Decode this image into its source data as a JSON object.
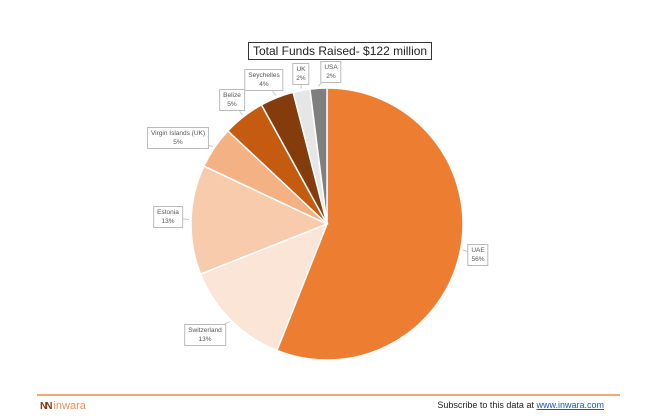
{
  "chart_data": {
    "type": "pie",
    "title": "Total Funds Raised- $122 million",
    "start_angle": "12 o'clock, clockwise",
    "slices": [
      {
        "label": "UAE",
        "value": 56,
        "pct_label": "56%",
        "color": "#ED7D31"
      },
      {
        "label": "Switzerland",
        "value": 13,
        "pct_label": "13%",
        "color": "#FBE5D6"
      },
      {
        "label": "Estonia",
        "value": 13,
        "pct_label": "13%",
        "color": "#F8CBAD"
      },
      {
        "label": "Virgin Islands (UK)",
        "value": 5,
        "pct_label": "5%",
        "color": "#F4B183"
      },
      {
        "label": "Belize",
        "value": 5,
        "pct_label": "5%",
        "color": "#C55A11"
      },
      {
        "label": "Seychelles",
        "value": 4,
        "pct_label": "4%",
        "color": "#843C0C"
      },
      {
        "label": "UK",
        "value": 2,
        "pct_label": "2%",
        "color": "#E7E6E6"
      },
      {
        "label": "USA",
        "value": 2,
        "pct_label": "2%",
        "color": "#7F7F7F"
      }
    ]
  },
  "footer": {
    "logo_mark": "NN",
    "logo_text": "inwara",
    "subscribe_text": "Subscribe to this data at",
    "subscribe_link": "www.inwara.com"
  }
}
